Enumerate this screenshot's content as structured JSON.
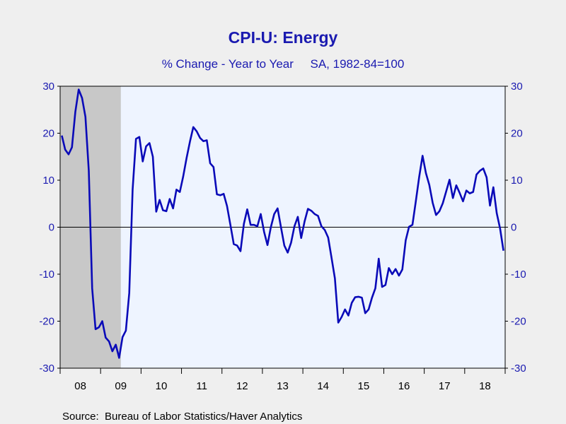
{
  "chart_data": {
    "type": "line",
    "title": "CPI-U: Energy",
    "subtitle": "% Change - Year to Year     SA, 1982-84=100",
    "source": "Source:  Bureau of Labor Statistics/Haver Analytics",
    "ylim": [
      -30,
      30
    ],
    "yticks": [
      30,
      20,
      10,
      0,
      -10,
      -20,
      -30
    ],
    "ytick_labels": [
      "30",
      "20",
      "10",
      "0",
      "-10",
      "-20",
      "-30"
    ],
    "xlim": [
      "2008-01",
      "2018-12"
    ],
    "year_labels": [
      "08",
      "09",
      "10",
      "11",
      "12",
      "13",
      "14",
      "15",
      "16",
      "17",
      "18"
    ],
    "recession": [
      "2008-01",
      "2009-06"
    ],
    "grid": false,
    "zero_line": true,
    "colors": {
      "line": "#0a0ab8",
      "text": "#1a1ab0",
      "recession": "#c8c8c8",
      "plot_bg": "#eef4ff",
      "page_bg": "#efefef"
    },
    "series": [
      {
        "start": "2008-01",
        "values": [
          19.5,
          16.5,
          15.5,
          17,
          24.5,
          29.3,
          27.5,
          23.5,
          12,
          -13,
          -21.7,
          -21.3,
          -20,
          -23.5,
          -24.3,
          -26.4,
          -25,
          -27.8,
          -23.4,
          -22,
          -14,
          8,
          18.8,
          19.2,
          14,
          17.2,
          17.9,
          15,
          3.3,
          5.8,
          3.6,
          3.4,
          6,
          4,
          8,
          7.5,
          10.8,
          14.7,
          18.2,
          21.3,
          20.4,
          19,
          18.3,
          18.5,
          13.6,
          12.8,
          7,
          6.8,
          7.1,
          4.5,
          0.5,
          -3.6,
          -3.9,
          -5.1,
          0.7,
          3.8,
          0.5,
          0.5,
          0.2,
          2.8,
          -1,
          -3.8,
          0,
          2.8,
          4,
          0,
          -3.9,
          -5.4,
          -3.3,
          0.2,
          2.2,
          -2.3,
          1.2,
          3.9,
          3.5,
          2.8,
          2.4,
          0.2,
          -0.6,
          -2.2,
          -6.5,
          -10.9,
          -20.3,
          -19.1,
          -17.5,
          -18.8,
          -16.1,
          -14.9,
          -14.8,
          -15,
          -18.3,
          -17.5,
          -15,
          -13,
          -6.7,
          -12.7,
          -12.3,
          -8.7,
          -10,
          -8.9,
          -10.3,
          -9,
          -2.8,
          0.1,
          0.5,
          5.5,
          10.7,
          15.2,
          11.5,
          9,
          5.2,
          2.6,
          3.4,
          5.1,
          7.6,
          10.1,
          6.2,
          8.9,
          7.3,
          5.5,
          7.8,
          7.2,
          7.5,
          11.2,
          12,
          12.5,
          10.6,
          4.6,
          8.5,
          3,
          -0.3,
          -5
        ]
      }
    ]
  }
}
